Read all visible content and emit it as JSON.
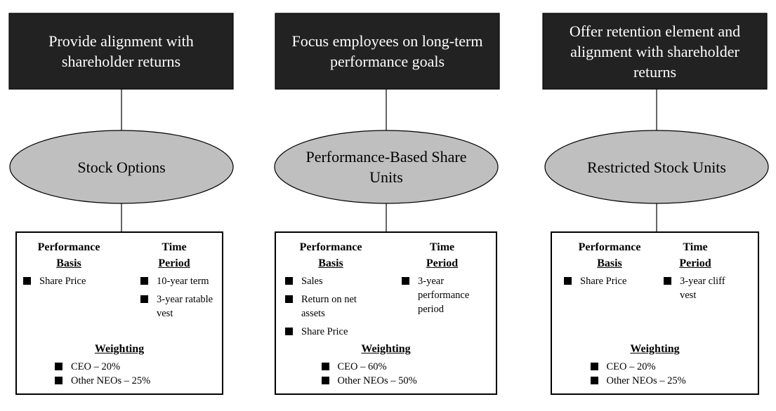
{
  "columns": [
    {
      "goal": "Provide alignment with shareholder returns",
      "vehicle": "Stock Options",
      "basis_heading": [
        "Performance",
        "Basis"
      ],
      "time_heading": [
        "Time",
        "Period"
      ],
      "basis": [
        "Share Price"
      ],
      "time": [
        "10-year term",
        "3-year ratable vest"
      ],
      "weighting_heading": "Weighting",
      "weighting": [
        "CEO – 20%",
        "Other NEOs – 25%"
      ]
    },
    {
      "goal": "Focus employees on long-term performance goals",
      "vehicle": "Performance-Based Share Units",
      "basis_heading": [
        "Performance",
        "Basis"
      ],
      "time_heading": [
        "Time",
        "Period"
      ],
      "basis": [
        "Sales",
        "Return on net assets",
        "Share Price"
      ],
      "time": [
        "3-year performance period"
      ],
      "weighting_heading": "Weighting",
      "weighting": [
        "CEO – 60%",
        "Other NEOs – 50%"
      ]
    },
    {
      "goal": "Offer retention element and alignment with shareholder returns",
      "vehicle": "Restricted Stock Units",
      "basis_heading": [
        "Performance",
        "Basis"
      ],
      "time_heading": [
        "Time",
        "Period"
      ],
      "basis": [
        "Share Price"
      ],
      "time": [
        "3-year cliff vest"
      ],
      "weighting_heading": "Weighting",
      "weighting": [
        "CEO – 20%",
        "Other NEOs – 25%"
      ]
    }
  ]
}
